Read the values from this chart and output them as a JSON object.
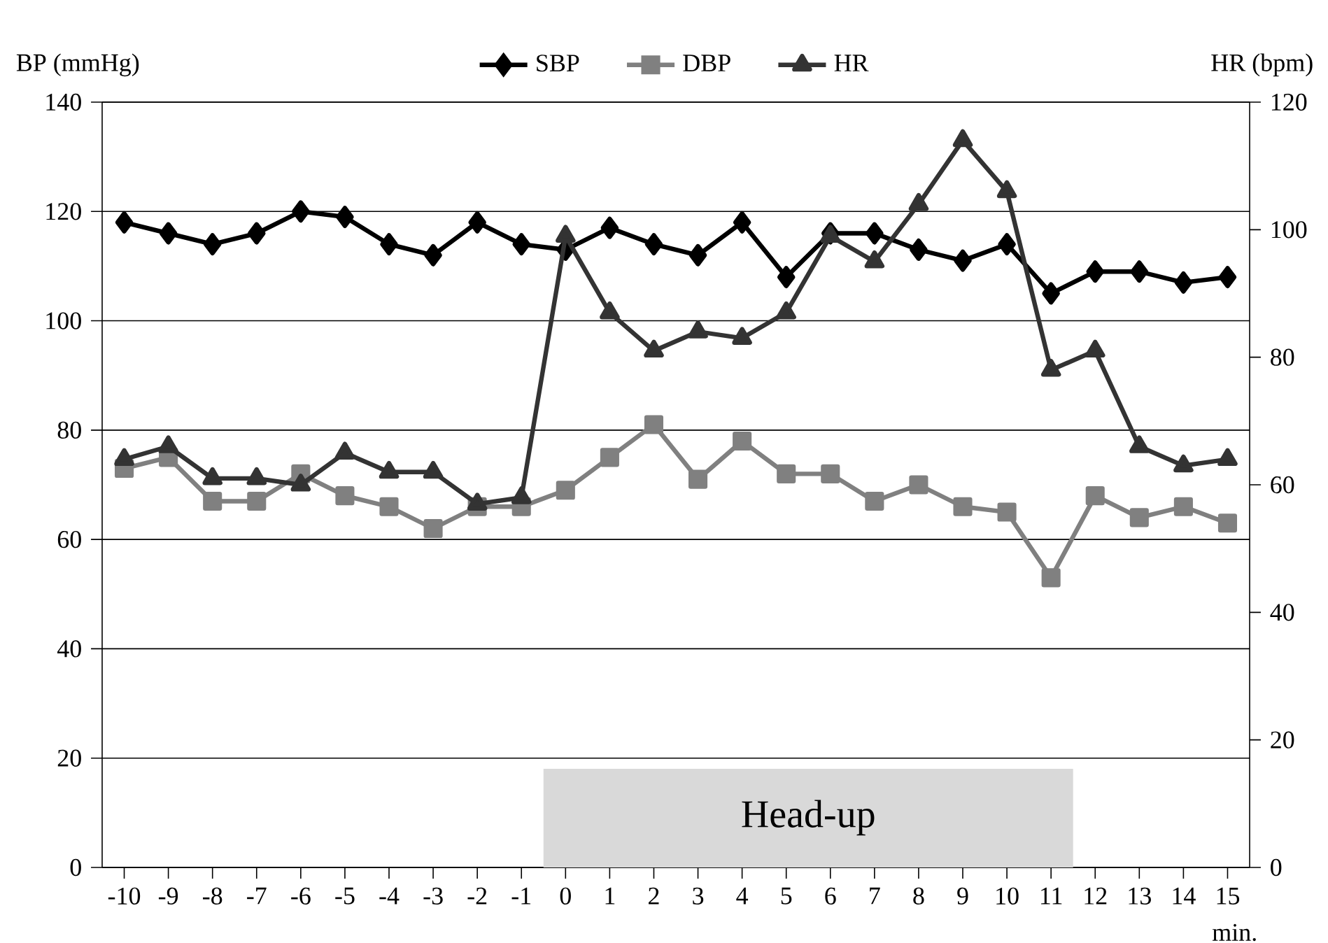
{
  "chart_data": {
    "type": "line",
    "ylabel": "BP (mmHg)",
    "y2label": "HR (bpm)",
    "xlabel": "min.",
    "x": [
      -10,
      -9,
      -8,
      -7,
      -6,
      -5,
      -4,
      -3,
      -2,
      -1,
      0,
      1,
      2,
      3,
      4,
      5,
      6,
      7,
      8,
      9,
      10,
      11,
      12,
      13,
      14,
      15
    ],
    "xlim": [
      -10.5,
      15.5
    ],
    "xticks": [
      -10,
      -9,
      -8,
      -7,
      -6,
      -5,
      -4,
      -3,
      -2,
      -1,
      0,
      1,
      2,
      3,
      4,
      5,
      6,
      7,
      8,
      9,
      10,
      11,
      12,
      13,
      14,
      15
    ],
    "ylim": [
      0,
      140
    ],
    "yticks": [
      0,
      20,
      40,
      60,
      80,
      100,
      120,
      140
    ],
    "y2lim": [
      0,
      120
    ],
    "y2ticks": [
      0,
      20,
      40,
      60,
      80,
      100,
      120
    ],
    "grid": "y",
    "legend": "top",
    "series": [
      {
        "name": "SBP",
        "color": "#000000",
        "marker": "diamond",
        "values": [
          118,
          116,
          114,
          116,
          120,
          119,
          114,
          112,
          118,
          114,
          113,
          117,
          114,
          112,
          118,
          108,
          116,
          116,
          113,
          111,
          114,
          105,
          109,
          109,
          107,
          108
        ]
      },
      {
        "name": "DBP",
        "color": "#808080",
        "marker": "square",
        "values": [
          73,
          75,
          67,
          67,
          72,
          68,
          66,
          62,
          66,
          66,
          69,
          75,
          81,
          71,
          78,
          72,
          72,
          67,
          70,
          66,
          65,
          53,
          68,
          64,
          66,
          63
        ]
      },
      {
        "name": "HR",
        "color": "#333333",
        "marker": "triangle",
        "axis": "y2",
        "values": [
          64,
          66,
          61,
          61,
          60,
          65,
          62,
          62,
          57,
          58,
          99,
          87,
          81,
          84,
          83,
          87,
          99,
          95,
          104,
          114,
          106,
          78,
          81,
          66,
          63,
          64
        ]
      }
    ],
    "bands": [
      {
        "axis": "x",
        "from": -0.5,
        "to": 11.5,
        "label": "Head-up",
        "color": "#d9d9d9"
      }
    ]
  }
}
